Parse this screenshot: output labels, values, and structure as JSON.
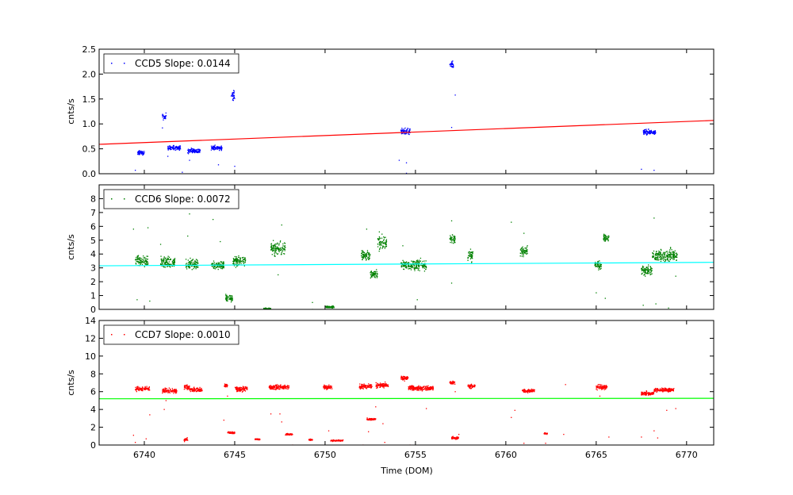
{
  "figure": {
    "xlabel": "Time (DOM)"
  },
  "chart_data": [
    {
      "type": "scatter",
      "series": [
        {
          "name": "CCD5 Slope: 0.0144",
          "color": "#0000ff",
          "clusters": [
            {
              "x": [
                6739.6,
                6740.0
              ],
              "y": 0.42,
              "spread": 0.04
            },
            {
              "x": [
                6741.0,
                6741.2
              ],
              "y": 1.15,
              "spread": 0.06
            },
            {
              "x": [
                6741.3,
                6742.0
              ],
              "y": 0.52,
              "spread": 0.04
            },
            {
              "x": [
                6742.4,
                6743.1
              ],
              "y": 0.46,
              "spread": 0.05
            },
            {
              "x": [
                6743.7,
                6744.3
              ],
              "y": 0.52,
              "spread": 0.04
            },
            {
              "x": [
                6744.8,
                6745.0
              ],
              "y": 1.58,
              "spread": 0.1
            },
            {
              "x": [
                6754.2,
                6754.7
              ],
              "y": 0.85,
              "spread": 0.06
            },
            {
              "x": [
                6756.9,
                6757.1
              ],
              "y": 2.18,
              "spread": 0.07
            },
            {
              "x": [
                6767.6,
                6768.3
              ],
              "y": 0.83,
              "spread": 0.05
            }
          ],
          "outliers": [
            [
              6739.5,
              0.07
            ],
            [
              6741.0,
              0.92
            ],
            [
              6741.3,
              0.35
            ],
            [
              6742.1,
              0.03
            ],
            [
              6742.5,
              0.27
            ],
            [
              6744.1,
              0.18
            ],
            [
              6745.0,
              0.15
            ],
            [
              6754.1,
              0.27
            ],
            [
              6754.5,
              0.22
            ],
            [
              6754.5,
              0.01
            ],
            [
              6757.0,
              0.93
            ],
            [
              6757.2,
              1.58
            ],
            [
              6767.5,
              0.09
            ],
            [
              6768.2,
              0.07
            ]
          ]
        }
      ],
      "fit_line": {
        "color": "#ff0000",
        "x": [
          6737.5,
          6771.5
        ],
        "y": [
          0.59,
          1.07
        ]
      },
      "ylim": [
        0,
        2.5
      ],
      "yticks": [
        0.0,
        0.5,
        1.0,
        1.5,
        2.0,
        2.5
      ],
      "ylabel": "cnts/s",
      "legend": "top-left"
    },
    {
      "type": "scatter",
      "series": [
        {
          "name": "CCD6 Slope: 0.0072",
          "color": "#008000",
          "clusters": [
            {
              "x": [
                6739.5,
                6740.2
              ],
              "y": 3.5,
              "spread": 0.35
            },
            {
              "x": [
                6740.9,
                6741.7
              ],
              "y": 3.4,
              "spread": 0.35
            },
            {
              "x": [
                6742.3,
                6743.0
              ],
              "y": 3.3,
              "spread": 0.35
            },
            {
              "x": [
                6743.7,
                6744.4
              ],
              "y": 3.2,
              "spread": 0.3
            },
            {
              "x": [
                6744.5,
                6744.9
              ],
              "y": 0.8,
              "spread": 0.25
            },
            {
              "x": [
                6744.9,
                6745.6
              ],
              "y": 3.5,
              "spread": 0.35
            },
            {
              "x": [
                6746.6,
                6747.0
              ],
              "y": 0.05,
              "spread": 0.04
            },
            {
              "x": [
                6747.0,
                6747.8
              ],
              "y": 4.4,
              "spread": 0.45
            },
            {
              "x": [
                6750.0,
                6750.5
              ],
              "y": 0.18,
              "spread": 0.07
            },
            {
              "x": [
                6752.0,
                6752.5
              ],
              "y": 3.9,
              "spread": 0.35
            },
            {
              "x": [
                6752.5,
                6752.9
              ],
              "y": 2.5,
              "spread": 0.3
            },
            {
              "x": [
                6752.9,
                6753.4
              ],
              "y": 4.8,
              "spread": 0.45
            },
            {
              "x": [
                6754.2,
                6754.6
              ],
              "y": 3.2,
              "spread": 0.3
            },
            {
              "x": [
                6754.6,
                6755.6
              ],
              "y": 3.2,
              "spread": 0.35
            },
            {
              "x": [
                6756.9,
                6757.2
              ],
              "y": 5.1,
              "spread": 0.35
            },
            {
              "x": [
                6757.9,
                6758.2
              ],
              "y": 3.9,
              "spread": 0.4
            },
            {
              "x": [
                6760.8,
                6761.2
              ],
              "y": 4.2,
              "spread": 0.35
            },
            {
              "x": [
                6764.9,
                6765.3
              ],
              "y": 3.2,
              "spread": 0.3
            },
            {
              "x": [
                6765.4,
                6765.7
              ],
              "y": 5.2,
              "spread": 0.3
            },
            {
              "x": [
                6767.5,
                6768.1
              ],
              "y": 2.8,
              "spread": 0.3
            },
            {
              "x": [
                6768.1,
                6769.5
              ],
              "y": 3.9,
              "spread": 0.4
            }
          ],
          "outliers": [
            [
              6739.4,
              5.8
            ],
            [
              6739.6,
              0.7
            ],
            [
              6740.2,
              5.9
            ],
            [
              6740.3,
              0.6
            ],
            [
              6740.9,
              4.7
            ],
            [
              6742.4,
              5.3
            ],
            [
              6742.5,
              6.9
            ],
            [
              6743.8,
              6.5
            ],
            [
              6744.2,
              4.9
            ],
            [
              6746.7,
              0.0
            ],
            [
              6747.6,
              6.1
            ],
            [
              6747.4,
              2.5
            ],
            [
              6749.3,
              0.5
            ],
            [
              6749.3,
              0.0
            ],
            [
              6752.3,
              5.8
            ],
            [
              6753.0,
              5.6
            ],
            [
              6754.3,
              4.6
            ],
            [
              6755.1,
              0.7
            ],
            [
              6757.0,
              6.4
            ],
            [
              6757.0,
              1.9
            ],
            [
              6760.3,
              6.3
            ],
            [
              6761.0,
              5.5
            ],
            [
              6765.0,
              1.2
            ],
            [
              6765.5,
              0.8
            ],
            [
              6767.6,
              0.3
            ],
            [
              6768.2,
              6.6
            ],
            [
              6768.3,
              0.4
            ],
            [
              6769.0,
              0.1
            ],
            [
              6769.4,
              2.4
            ]
          ]
        }
      ],
      "fit_line": {
        "color": "#00ffff",
        "x": [
          6737.5,
          6771.5
        ],
        "y": [
          3.15,
          3.4
        ]
      },
      "ylim": [
        0,
        9
      ],
      "yticks": [
        0,
        1,
        2,
        3,
        4,
        5,
        6,
        7,
        8
      ],
      "ylabel": "cnts/s",
      "legend": "top-left"
    },
    {
      "type": "scatter",
      "series": [
        {
          "name": "CCD7 Slope: 0.0010",
          "color": "#ff0000",
          "clusters": [
            {
              "x": [
                6739.5,
                6740.3
              ],
              "y": 6.3,
              "spread": 0.25
            },
            {
              "x": [
                6741.0,
                6741.8
              ],
              "y": 6.1,
              "spread": 0.25
            },
            {
              "x": [
                6742.2,
                6742.5
              ],
              "y": 6.5,
              "spread": 0.25
            },
            {
              "x": [
                6742.2,
                6742.4
              ],
              "y": 0.6,
              "spread": 0.2
            },
            {
              "x": [
                6742.5,
                6743.2
              ],
              "y": 6.2,
              "spread": 0.2
            },
            {
              "x": [
                6744.4,
                6744.6
              ],
              "y": 6.7,
              "spread": 0.2
            },
            {
              "x": [
                6744.6,
                6745.0
              ],
              "y": 1.4,
              "spread": 0.1
            },
            {
              "x": [
                6745.0,
                6745.7
              ],
              "y": 6.3,
              "spread": 0.25
            },
            {
              "x": [
                6746.1,
                6746.4
              ],
              "y": 0.65,
              "spread": 0.08
            },
            {
              "x": [
                6746.9,
                6748.0
              ],
              "y": 6.5,
              "spread": 0.25
            },
            {
              "x": [
                6747.8,
                6748.2
              ],
              "y": 1.2,
              "spread": 0.08
            },
            {
              "x": [
                6749.1,
                6749.3
              ],
              "y": 0.6,
              "spread": 0.08
            },
            {
              "x": [
                6749.9,
                6750.4
              ],
              "y": 6.5,
              "spread": 0.25
            },
            {
              "x": [
                6750.3,
                6751.0
              ],
              "y": 0.5,
              "spread": 0.07
            },
            {
              "x": [
                6751.9,
                6752.6
              ],
              "y": 6.6,
              "spread": 0.25
            },
            {
              "x": [
                6752.3,
                6752.8
              ],
              "y": 2.9,
              "spread": 0.1
            },
            {
              "x": [
                6752.8,
                6753.5
              ],
              "y": 6.7,
              "spread": 0.25
            },
            {
              "x": [
                6754.2,
                6754.6
              ],
              "y": 7.5,
              "spread": 0.25
            },
            {
              "x": [
                6754.6,
                6756.0
              ],
              "y": 6.4,
              "spread": 0.25
            },
            {
              "x": [
                6756.9,
                6757.2
              ],
              "y": 7.0,
              "spread": 0.2
            },
            {
              "x": [
                6757.0,
                6757.4
              ],
              "y": 0.8,
              "spread": 0.15
            },
            {
              "x": [
                6757.9,
                6758.3
              ],
              "y": 6.6,
              "spread": 0.2
            },
            {
              "x": [
                6760.9,
                6761.6
              ],
              "y": 6.1,
              "spread": 0.2
            },
            {
              "x": [
                6762.1,
                6762.3
              ],
              "y": 1.3,
              "spread": 0.08
            },
            {
              "x": [
                6765.0,
                6765.6
              ],
              "y": 6.5,
              "spread": 0.25
            },
            {
              "x": [
                6767.5,
                6768.2
              ],
              "y": 5.8,
              "spread": 0.2
            },
            {
              "x": [
                6768.2,
                6769.3
              ],
              "y": 6.2,
              "spread": 0.2
            }
          ],
          "outliers": [
            [
              6739.4,
              1.1
            ],
            [
              6739.5,
              0.3
            ],
            [
              6740.3,
              3.4
            ],
            [
              6740.1,
              0.7
            ],
            [
              6741.2,
              5.0
            ],
            [
              6741.1,
              4.0
            ],
            [
              6742.1,
              0.0
            ],
            [
              6744.4,
              2.8
            ],
            [
              6744.6,
              5.5
            ],
            [
              6747.0,
              3.5
            ],
            [
              6747.5,
              3.5
            ],
            [
              6747.6,
              2.6
            ],
            [
              6748.2,
              0.0
            ],
            [
              6750.2,
              1.6
            ],
            [
              6752.1,
              0.0
            ],
            [
              6752.4,
              1.5
            ],
            [
              6752.8,
              4.3
            ],
            [
              6753.2,
              2.4
            ],
            [
              6753.3,
              0.3
            ],
            [
              6754.7,
              0.0
            ],
            [
              6755.6,
              4.1
            ],
            [
              6757.2,
              6.0
            ],
            [
              6757.4,
              1.2
            ],
            [
              6760.3,
              3.1
            ],
            [
              6760.5,
              3.9
            ],
            [
              6761.0,
              0.2
            ],
            [
              6762.2,
              0.2
            ],
            [
              6763.2,
              1.2
            ],
            [
              6763.3,
              6.8
            ],
            [
              6765.2,
              5.5
            ],
            [
              6765.7,
              0.9
            ],
            [
              6767.5,
              0.9
            ],
            [
              6768.2,
              1.6
            ],
            [
              6768.4,
              0.8
            ],
            [
              6768.9,
              3.9
            ],
            [
              6769.4,
              4.1
            ]
          ]
        }
      ],
      "fit_line": {
        "color": "#00ff00",
        "x": [
          6737.5,
          6771.5
        ],
        "y": [
          5.2,
          5.25
        ]
      },
      "ylim": [
        0,
        14
      ],
      "yticks": [
        0,
        2,
        4,
        6,
        8,
        10,
        12,
        14
      ],
      "ylabel": "cnts/s",
      "legend": "top-left"
    }
  ],
  "xaxis": {
    "xlim": [
      6737.5,
      6771.5
    ],
    "xticks": [
      6740,
      6745,
      6750,
      6755,
      6760,
      6765,
      6770
    ]
  }
}
